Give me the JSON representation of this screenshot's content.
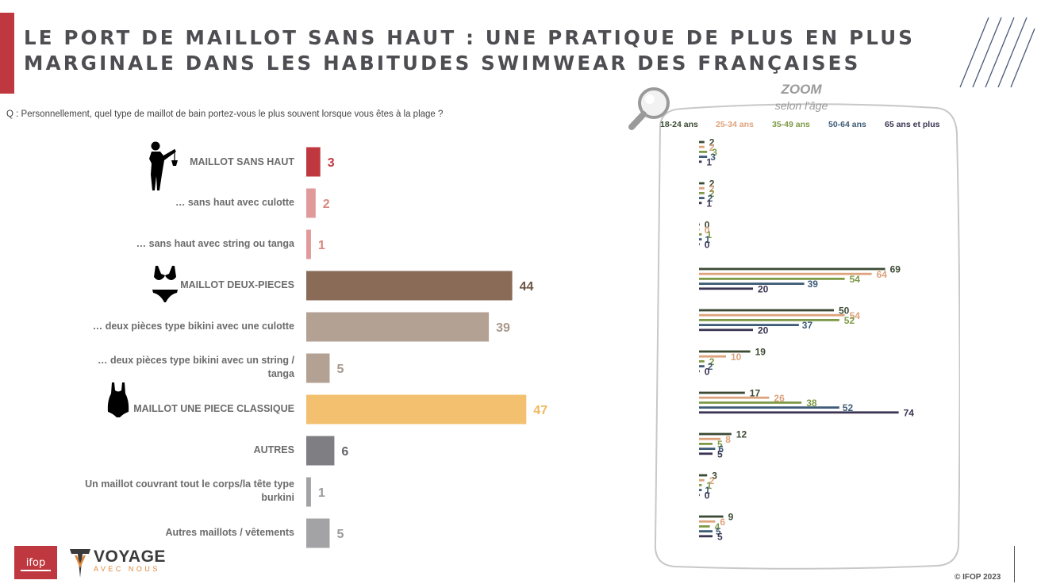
{
  "header": {
    "title_line1": "LE PORT DE MAILLOT SANS HAUT : UNE PRATIQUE DE PLUS EN PLUS",
    "title_line2": "MARGINALE DANS LES HABITUDES SWIMWEAR DES FRANÇAISES",
    "accent_color": "#c0383f"
  },
  "question": "Q : Personnellement, quel type de maillot de bain portez-vous le plus souvent lorsque vous êtes à la plage ?",
  "zoom": {
    "title": "ZOOM",
    "subtitle": "selon l'âge"
  },
  "icons": {
    "topless": "topless-woman-icon",
    "bikini": "bikini-icon",
    "one_piece": "one-piece-swimsuit-icon",
    "magnifier": "magnifier-icon"
  },
  "footer": {
    "ifop_logo": "ifop",
    "voyage_logo": "VOYAGE",
    "voyage_tagline": "AVEC NOUS",
    "copyright": "© IFOP 2023"
  },
  "chart_data": [
    {
      "type": "bar",
      "orientation": "horizontal",
      "categories": [
        "MAILLOT SANS HAUT",
        "… sans haut avec culotte",
        "… sans haut avec string ou tanga",
        "MAILLOT DEUX-PIECES",
        "… deux pièces type bikini avec une culotte",
        "… deux pièces type bikini avec un string / tanga",
        "MAILLOT UNE PIECE CLASSIQUE",
        "AUTRES",
        "Un maillot couvrant tout le corps/la tête type burkini",
        "Autres maillots / vêtements"
      ],
      "values": [
        3,
        2,
        1,
        44,
        39,
        5,
        47,
        6,
        1,
        5
      ],
      "colors": [
        "#c0383f",
        "#e09a9a",
        "#e09a9a",
        "#896b58",
        "#b3a194",
        "#b3a194",
        "#f3c070",
        "#7f7f83",
        "#a3a3a6",
        "#a3a3a6"
      ],
      "value_colors": [
        "#c0383f",
        "#d9877f",
        "#d9877f",
        "#6e5546",
        "#a8978a",
        "#a8978a",
        "#f1b85e",
        "#66666a",
        "#9a9a9d",
        "#9a9a9d"
      ],
      "xlim": [
        0,
        50
      ]
    },
    {
      "type": "bar",
      "orientation": "horizontal",
      "title": "ZOOM",
      "subtitle": "selon l'âge",
      "series": [
        {
          "name": "18-24 ans",
          "color": "#3c4a34",
          "values": [
            2,
            2,
            0,
            69,
            50,
            19,
            17,
            12,
            3,
            9
          ]
        },
        {
          "name": "25-34 ans",
          "color": "#dda37c",
          "values": [
            2,
            2,
            0,
            64,
            54,
            10,
            26,
            8,
            2,
            6
          ]
        },
        {
          "name": "35-49 ans",
          "color": "#7e9a48",
          "values": [
            3,
            2,
            1,
            54,
            52,
            2,
            38,
            5,
            1,
            4
          ]
        },
        {
          "name": "50-64 ans",
          "color": "#3e5c78",
          "values": [
            3,
            2,
            1,
            39,
            37,
            2,
            52,
            6,
            1,
            5
          ]
        },
        {
          "name": "65 ans et plus",
          "color": "#3b3452",
          "values": [
            1,
            1,
            0,
            20,
            20,
            0,
            74,
            5,
            0,
            5
          ]
        }
      ],
      "xlim": [
        0,
        80
      ]
    }
  ]
}
